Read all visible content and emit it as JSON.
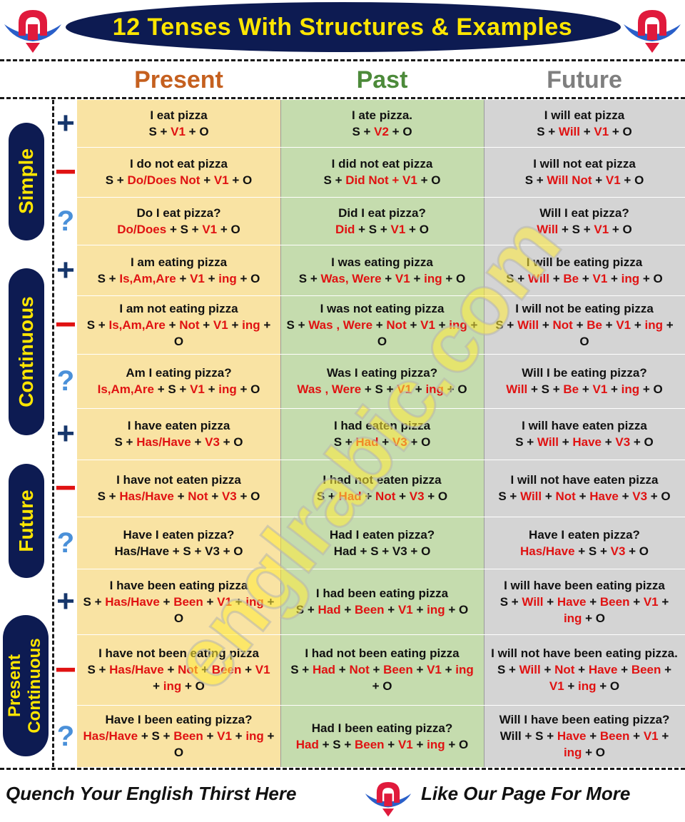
{
  "title": "12 Tenses With Structures & Examples",
  "columns": {
    "present": "Present",
    "past": "Past",
    "future": "Future"
  },
  "row_labels": [
    "Simple",
    "Continuous",
    "Future",
    "Present Continuous"
  ],
  "row_label_lines": [
    "Present",
    "Continuous"
  ],
  "symbols": {
    "plus": "+",
    "minus": "−",
    "question": "?"
  },
  "watermark": "englrabic.com",
  "footer": {
    "left": "Quench Your English Thirst Here",
    "right": "Like Our Page For More"
  },
  "colors": {
    "navy": "#0d1b52",
    "yellow": "#ffe600",
    "red": "#e01212",
    "present_bg": "#f9e3a3",
    "past_bg": "#c5dcae",
    "future_bg": "#d4d4d4"
  },
  "cells": [
    [
      "I eat pizza",
      "I ate pizza.",
      "I will eat pizza"
    ],
    [
      "I do not eat pizza",
      "I did not eat pizza",
      "I will not eat pizza"
    ],
    [
      "Do I eat pizza?",
      "Did I eat pizza?",
      "Will I eat pizza?"
    ],
    [
      "I am eating pizza",
      "I was eating pizza",
      "I will be eating pizza"
    ],
    [
      "I am not eating pizza",
      "I was not eating pizza",
      "I will not be eating pizza"
    ],
    [
      "Am I eating pizza?",
      "Was I eating pizza?",
      "Will I be eating pizza?"
    ],
    [
      "I have eaten pizza",
      "I had eaten pizza",
      "I will have eaten pizza"
    ],
    [
      "I have not eaten pizza",
      "I had not eaten pizza",
      "I will not have eaten pizza"
    ],
    [
      "Have I eaten pizza?",
      "Had I eaten pizza?",
      "Have I eaten pizza?"
    ],
    [
      "I have been eating pizza",
      "I had been eating pizza",
      "I will have been eating pizza"
    ],
    [
      "I have not been eating pizza",
      "I had not been eating pizza",
      "I will not have been eating pizza."
    ],
    [
      "Have I been eating pizza?",
      "Had I been eating pizza?",
      "Will I have been eating pizza?"
    ]
  ],
  "structures": [
    [
      [
        "S + ",
        "V1",
        " + O"
      ],
      [
        "S + ",
        "V2",
        " + O"
      ],
      [
        "S + ",
        "Will",
        " + ",
        "V1",
        " + O"
      ]
    ],
    [
      [
        "S + ",
        "Do/Does Not",
        " +  ",
        "V1",
        " + O"
      ],
      [
        "S + ",
        "Did Not +  V1",
        " + O"
      ],
      [
        "S + ",
        "Will Not",
        " +  ",
        "V1",
        " + O"
      ]
    ],
    [
      [
        "",
        "Do/Does",
        " + S + ",
        "V1",
        " + O"
      ],
      [
        "",
        "Did",
        " + S + ",
        "V1",
        " + O"
      ],
      [
        "",
        "Will",
        " + S + ",
        "V1",
        " + O"
      ]
    ],
    [
      [
        "S + ",
        "Is,Am,Are",
        " + ",
        "V1",
        " + ",
        "ing",
        " + O"
      ],
      [
        "S + ",
        "Was, Were",
        " + ",
        "V1",
        " + ",
        "ing",
        " + O"
      ],
      [
        "S + ",
        "Will",
        " + ",
        "Be",
        " + ",
        "V1",
        " + ",
        "ing",
        " + O"
      ]
    ],
    [
      [
        "S + ",
        "Is,Am,Are",
        " + ",
        "Not",
        " + ",
        "V1",
        " + ",
        "ing",
        " + O"
      ],
      [
        "S + ",
        "Was , Were",
        " + ",
        "Not",
        " + ",
        "V1",
        " + ",
        "ing",
        " + O"
      ],
      [
        "S + ",
        "Will",
        " + ",
        "Not",
        " + ",
        "Be",
        " + ",
        "V1",
        " + ",
        "ing",
        " + O"
      ]
    ],
    [
      [
        "",
        "Is,Am,Are",
        " + S + ",
        "V1",
        " + ",
        "ing",
        " + O"
      ],
      [
        "",
        "Was , Were",
        " + S + ",
        "V1",
        " + ",
        "ing",
        " + O"
      ],
      [
        "",
        "Will",
        " + S + ",
        "Be",
        " + ",
        "V1",
        " + ",
        "ing",
        " + O"
      ]
    ],
    [
      [
        "S + ",
        "Has/Have",
        " + ",
        "V3",
        " + O"
      ],
      [
        "S + ",
        "Had",
        "  + ",
        "V3",
        " + O"
      ],
      [
        "S + ",
        "Will",
        " + ",
        "Have",
        " + ",
        "V3",
        " + O"
      ]
    ],
    [
      [
        "S + ",
        "Has/Have",
        " + ",
        "Not",
        " + ",
        "V3",
        " + O"
      ],
      [
        "S + ",
        "Had",
        " + ",
        "Not",
        " + ",
        "V3",
        " + O"
      ],
      [
        "S + ",
        "Will",
        " + ",
        "Not",
        " + ",
        "Have",
        " + ",
        "V3",
        " + O"
      ]
    ],
    [
      [
        "Has/Have + S + V3 + O"
      ],
      [
        "Had + S + V3 + O"
      ],
      [
        "",
        "Has/Have",
        " + S + ",
        "V3",
        " + O"
      ]
    ],
    [
      [
        "S + ",
        "Has/Have",
        " + ",
        "Been",
        " + ",
        "V1",
        " + ",
        "ing",
        " + O"
      ],
      [
        "S + ",
        "Had",
        " + ",
        "Been",
        " + ",
        "V1",
        " + ",
        "ing",
        " + O"
      ],
      [
        "S + ",
        "Will",
        " + ",
        "Have",
        " + ",
        "Been",
        " + ",
        "V1",
        " + ",
        "ing",
        " + O"
      ]
    ],
    [
      [
        "S + ",
        "Has/Have",
        " + ",
        "Not",
        " + ",
        "Been",
        " + ",
        "V1",
        " + ",
        "ing",
        " + O"
      ],
      [
        "S + ",
        "Had",
        " + ",
        "Not",
        " + ",
        "Been",
        " + ",
        "V1",
        " + ",
        "ing",
        " + O"
      ],
      [
        "S + ",
        "Will",
        " + ",
        "Not",
        " + ",
        "Have",
        " + ",
        "Been",
        " + ",
        "V1",
        " + ",
        "ing",
        " + O"
      ]
    ],
    [
      [
        "",
        "Has/Have",
        " + S + ",
        "Been",
        " + ",
        "V1",
        " + ",
        "ing",
        " + O"
      ],
      [
        "",
        "Had",
        " + S + ",
        "Been",
        " + ",
        "V1",
        " + ",
        "ing",
        " + O"
      ],
      [
        "Will + S + ",
        "Have",
        " + ",
        "Been",
        " + ",
        "V1",
        " + ",
        "ing",
        " + O"
      ]
    ]
  ]
}
